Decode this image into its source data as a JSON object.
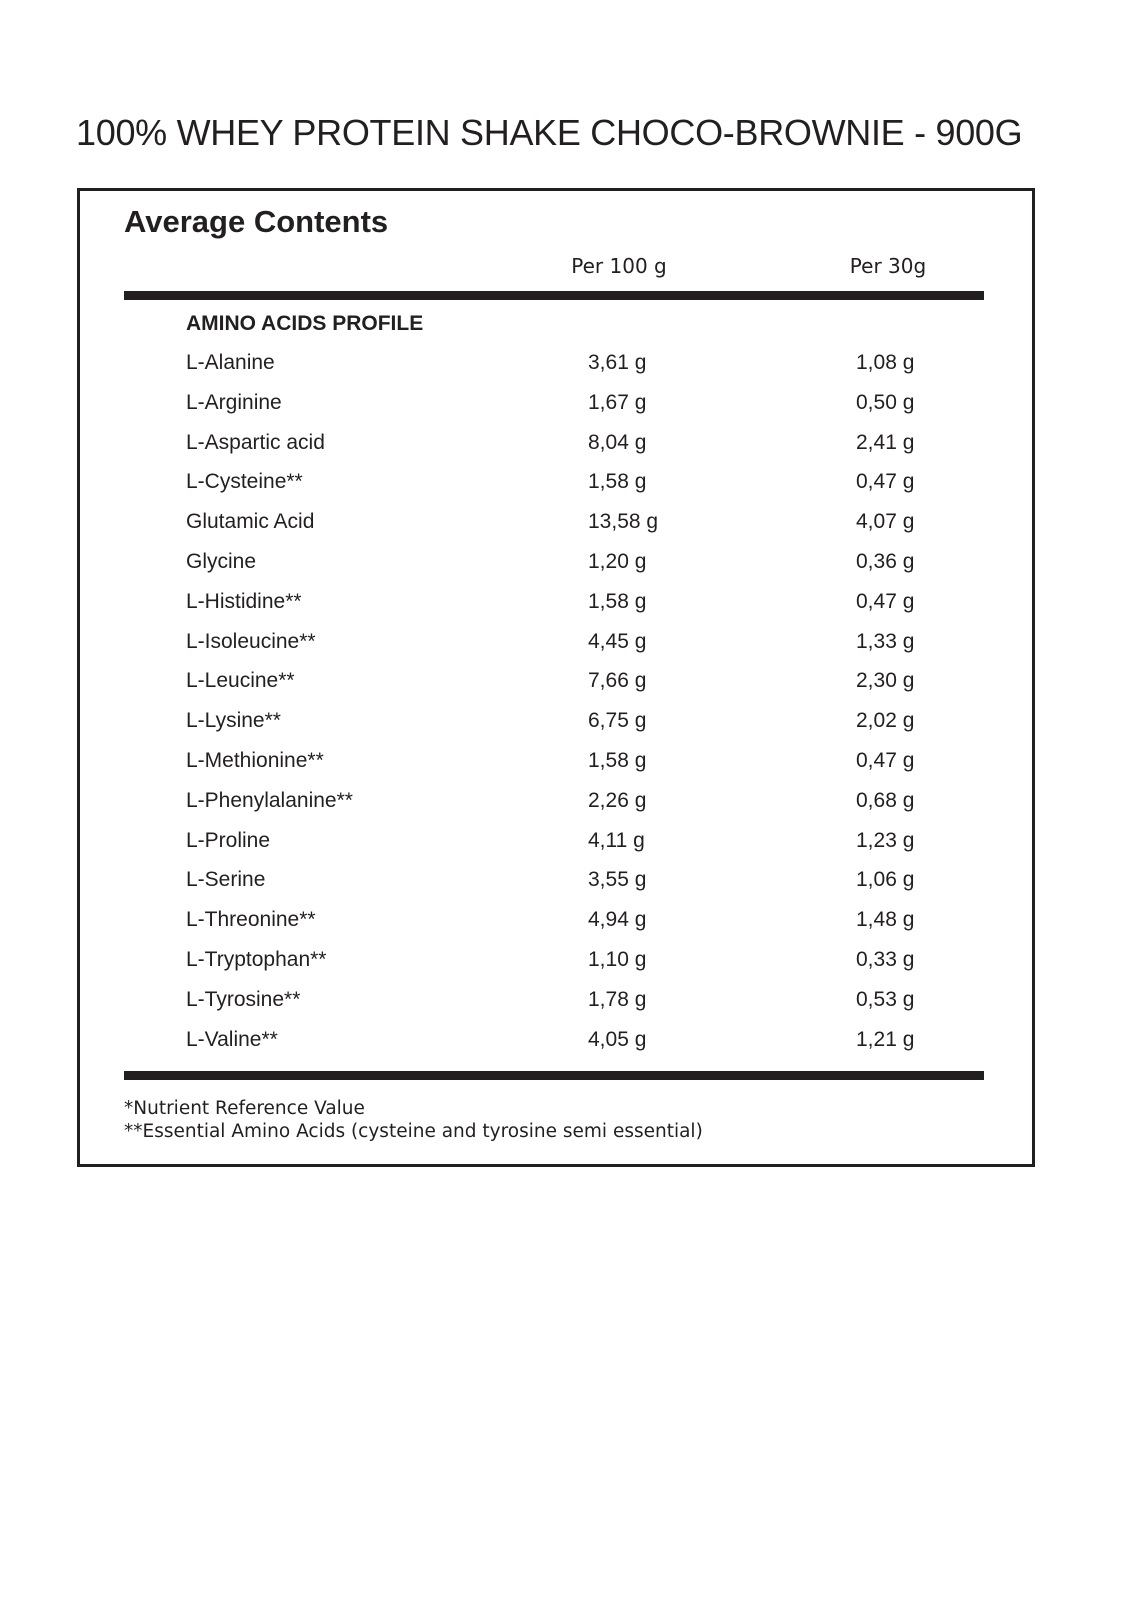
{
  "title": "100% WHEY PROTEIN SHAKE CHOCO-BROWNIE - 900G",
  "table": {
    "heading": "Average Contents",
    "columns": [
      "Per 100 g",
      "Per 30g"
    ],
    "section": "AMINO ACIDS PROFILE",
    "rows": [
      {
        "name": "L-Alanine",
        "per100": "3,61 g",
        "per30": "1,08 g"
      },
      {
        "name": "L-Arginine",
        "per100": "1,67 g",
        "per30": "0,50 g"
      },
      {
        "name": "L-Aspartic acid",
        "per100": "8,04 g",
        "per30": "2,41 g"
      },
      {
        "name": "L-Cysteine**",
        "per100": "1,58 g",
        "per30": "0,47 g"
      },
      {
        "name": "Glutamic Acid",
        "per100": "13,58 g",
        "per30": "4,07 g"
      },
      {
        "name": "Glycine",
        "per100": "1,20 g",
        "per30": "0,36 g"
      },
      {
        "name": "L-Histidine**",
        "per100": "1,58 g",
        "per30": "0,47 g"
      },
      {
        "name": "L-Isoleucine**",
        "per100": "4,45 g",
        "per30": "1,33 g"
      },
      {
        "name": "L-Leucine**",
        "per100": "7,66 g",
        "per30": "2,30 g"
      },
      {
        "name": "L-Lysine**",
        "per100": "6,75 g",
        "per30": "2,02 g"
      },
      {
        "name": "L-Methionine**",
        "per100": "1,58 g",
        "per30": "0,47 g"
      },
      {
        "name": "L-Phenylalanine**",
        "per100": "2,26 g",
        "per30": "0,68 g"
      },
      {
        "name": "L-Proline",
        "per100": "4,11 g",
        "per30": "1,23 g"
      },
      {
        "name": "L-Serine",
        "per100": "3,55 g",
        "per30": "1,06 g"
      },
      {
        "name": "L-Threonine**",
        "per100": "4,94 g",
        "per30": "1,48 g"
      },
      {
        "name": "L-Tryptophan**",
        "per100": "1,10 g",
        "per30": "0,33 g"
      },
      {
        "name": "L-Tyrosine**",
        "per100": "1,78 g",
        "per30": "0,53 g"
      },
      {
        "name": "L-Valine**",
        "per100": "4,05 g",
        "per30": "1,21 g"
      }
    ]
  },
  "footnotes": [
    "*Nutrient Reference Value",
    "**Essential Amino Acids (cysteine and tyrosine semi essential)"
  ]
}
